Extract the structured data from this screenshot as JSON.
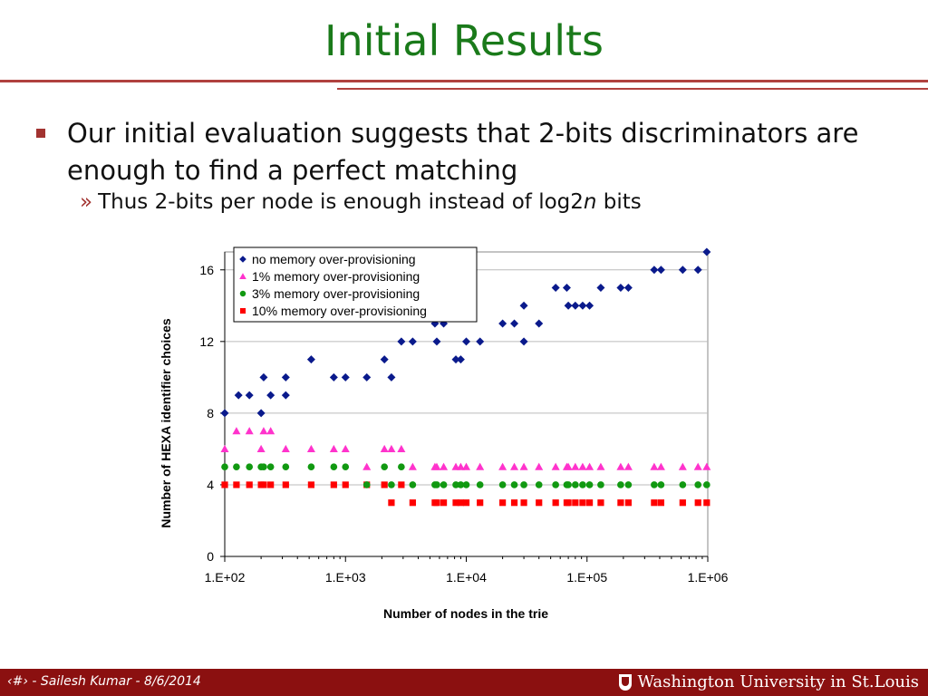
{
  "slide": {
    "title": "Initial Results",
    "bullet_main": "Our initial evaluation suggests that 2-bits discriminators are enough to find a perfect matching",
    "bullet_sub_marker": "»",
    "bullet_sub_prefix": "Thus 2-bits per node is enough instead of log2",
    "bullet_sub_italic": "n",
    "bullet_sub_suffix": " bits"
  },
  "footer": {
    "left": "‹#› - Sailesh Kumar - 8/6/2014",
    "logo": "Washington University in St.Louis"
  },
  "colors": {
    "title": "#1a7a1a",
    "accent": "#a23330",
    "footer": "#8b1010",
    "series": [
      "#0a1a8c",
      "#ff33cc",
      "#119911",
      "#ff0000"
    ]
  },
  "chart_data": {
    "type": "scatter",
    "xscale": "log",
    "xlim": [
      100,
      1000000
    ],
    "ylim": [
      0,
      17
    ],
    "xticks": [
      "1.E+02",
      "1.E+03",
      "1.E+04",
      "1.E+05",
      "1.E+06"
    ],
    "yticks": [
      0,
      4,
      8,
      12,
      16
    ],
    "xlabel": "Number of nodes in the trie",
    "ylabel": "Number of HEXA identifier choices",
    "grid": "horizontal",
    "legend": "top-left inside",
    "series": [
      {
        "name": "no memory over-provisioning",
        "marker": "diamond",
        "points": [
          [
            100,
            8
          ],
          [
            130,
            9
          ],
          [
            160,
            9
          ],
          [
            200,
            8
          ],
          [
            210,
            10
          ],
          [
            240,
            9
          ],
          [
            320,
            10
          ],
          [
            320,
            9
          ],
          [
            520,
            11
          ],
          [
            800,
            10
          ],
          [
            1000,
            10
          ],
          [
            1500,
            10
          ],
          [
            2100,
            11
          ],
          [
            2400,
            10
          ],
          [
            2900,
            12
          ],
          [
            3600,
            12
          ],
          [
            5500,
            13
          ],
          [
            5700,
            12
          ],
          [
            6500,
            13
          ],
          [
            8200,
            11
          ],
          [
            9000,
            11
          ],
          [
            10000,
            12
          ],
          [
            13000,
            12
          ],
          [
            20000,
            13
          ],
          [
            25000,
            13
          ],
          [
            30000,
            14
          ],
          [
            30000,
            12
          ],
          [
            40000,
            13
          ],
          [
            55000,
            15
          ],
          [
            68000,
            15
          ],
          [
            70000,
            14
          ],
          [
            80000,
            14
          ],
          [
            92000,
            14
          ],
          [
            105000,
            14
          ],
          [
            130000,
            15
          ],
          [
            190000,
            15
          ],
          [
            220000,
            15
          ],
          [
            360000,
            16
          ],
          [
            410000,
            16
          ],
          [
            620000,
            16
          ],
          [
            830000,
            16
          ],
          [
            980000,
            17
          ]
        ]
      },
      {
        "name": "1% memory over-provisioning",
        "marker": "triangle",
        "points": [
          [
            100,
            6
          ],
          [
            125,
            7
          ],
          [
            160,
            7
          ],
          [
            200,
            6
          ],
          [
            210,
            7
          ],
          [
            240,
            7
          ],
          [
            320,
            6
          ],
          [
            520,
            6
          ],
          [
            800,
            6
          ],
          [
            1000,
            6
          ],
          [
            1500,
            5
          ],
          [
            2100,
            6
          ],
          [
            2400,
            6
          ],
          [
            2900,
            6
          ],
          [
            3600,
            5
          ],
          [
            5500,
            5
          ],
          [
            5700,
            5
          ],
          [
            6500,
            5
          ],
          [
            8200,
            5
          ],
          [
            9000,
            5
          ],
          [
            10000,
            5
          ],
          [
            13000,
            5
          ],
          [
            20000,
            5
          ],
          [
            25000,
            5
          ],
          [
            30000,
            5
          ],
          [
            40000,
            5
          ],
          [
            55000,
            5
          ],
          [
            68000,
            5
          ],
          [
            70000,
            5
          ],
          [
            80000,
            5
          ],
          [
            92000,
            5
          ],
          [
            105000,
            5
          ],
          [
            130000,
            5
          ],
          [
            190000,
            5
          ],
          [
            220000,
            5
          ],
          [
            360000,
            5
          ],
          [
            410000,
            5
          ],
          [
            620000,
            5
          ],
          [
            830000,
            5
          ],
          [
            980000,
            5
          ]
        ]
      },
      {
        "name": "3% memory over-provisioning",
        "marker": "circle",
        "points": [
          [
            100,
            5
          ],
          [
            125,
            5
          ],
          [
            160,
            5
          ],
          [
            200,
            5
          ],
          [
            210,
            5
          ],
          [
            240,
            5
          ],
          [
            320,
            5
          ],
          [
            520,
            5
          ],
          [
            800,
            5
          ],
          [
            1000,
            5
          ],
          [
            1500,
            4
          ],
          [
            2100,
            5
          ],
          [
            2400,
            4
          ],
          [
            2900,
            5
          ],
          [
            3600,
            4
          ],
          [
            5500,
            4
          ],
          [
            5700,
            4
          ],
          [
            6500,
            4
          ],
          [
            8200,
            4
          ],
          [
            9000,
            4
          ],
          [
            10000,
            4
          ],
          [
            13000,
            4
          ],
          [
            20000,
            4
          ],
          [
            25000,
            4
          ],
          [
            30000,
            4
          ],
          [
            40000,
            4
          ],
          [
            55000,
            4
          ],
          [
            68000,
            4
          ],
          [
            70000,
            4
          ],
          [
            80000,
            4
          ],
          [
            92000,
            4
          ],
          [
            105000,
            4
          ],
          [
            130000,
            4
          ],
          [
            190000,
            4
          ],
          [
            220000,
            4
          ],
          [
            360000,
            4
          ],
          [
            410000,
            4
          ],
          [
            620000,
            4
          ],
          [
            830000,
            4
          ],
          [
            980000,
            4
          ]
        ]
      },
      {
        "name": "10% memory over-provisioning",
        "marker": "square",
        "points": [
          [
            100,
            4
          ],
          [
            125,
            4
          ],
          [
            160,
            4
          ],
          [
            200,
            4
          ],
          [
            210,
            4
          ],
          [
            240,
            4
          ],
          [
            320,
            4
          ],
          [
            520,
            4
          ],
          [
            800,
            4
          ],
          [
            1000,
            4
          ],
          [
            1500,
            4
          ],
          [
            2100,
            4
          ],
          [
            2400,
            3
          ],
          [
            2900,
            4
          ],
          [
            3600,
            3
          ],
          [
            5500,
            3
          ],
          [
            5700,
            3
          ],
          [
            6500,
            3
          ],
          [
            8200,
            3
          ],
          [
            9000,
            3
          ],
          [
            10000,
            3
          ],
          [
            13000,
            3
          ],
          [
            20000,
            3
          ],
          [
            25000,
            3
          ],
          [
            30000,
            3
          ],
          [
            40000,
            3
          ],
          [
            55000,
            3
          ],
          [
            68000,
            3
          ],
          [
            70000,
            3
          ],
          [
            80000,
            3
          ],
          [
            92000,
            3
          ],
          [
            105000,
            3
          ],
          [
            130000,
            3
          ],
          [
            190000,
            3
          ],
          [
            220000,
            3
          ],
          [
            360000,
            3
          ],
          [
            410000,
            3
          ],
          [
            620000,
            3
          ],
          [
            830000,
            3
          ],
          [
            980000,
            3
          ]
        ]
      }
    ]
  }
}
